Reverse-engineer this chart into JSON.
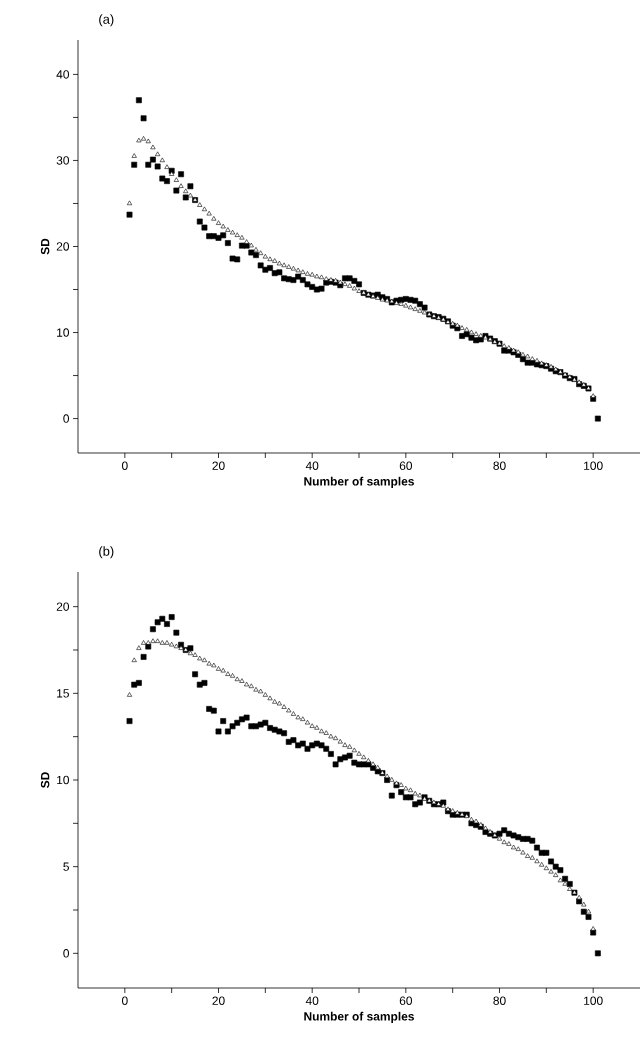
{
  "chart_data": [
    {
      "type": "scatter",
      "title": "(a)",
      "xlabel": "Number of samples",
      "ylabel": "SD",
      "x": [
        1,
        2,
        3,
        4,
        5,
        6,
        7,
        8,
        9,
        10,
        11,
        12,
        13,
        14,
        15,
        16,
        17,
        18,
        19,
        20,
        21,
        22,
        23,
        24,
        25,
        26,
        27,
        28,
        29,
        30,
        31,
        32,
        33,
        34,
        35,
        36,
        37,
        38,
        39,
        40,
        41,
        42,
        43,
        44,
        45,
        46,
        47,
        48,
        49,
        50,
        51,
        52,
        53,
        54,
        55,
        56,
        57,
        58,
        59,
        60,
        61,
        62,
        63,
        64,
        65,
        66,
        67,
        68,
        69,
        70,
        71,
        72,
        73,
        74,
        75,
        76,
        77,
        78,
        79,
        80,
        81,
        82,
        83,
        84,
        85,
        86,
        87,
        88,
        89,
        90,
        91,
        92,
        93,
        94,
        95,
        96,
        97,
        98,
        99,
        100,
        101
      ],
      "series": [
        {
          "color": "#000000",
          "marker": "square",
          "values": [
            23.7,
            29.5,
            37.0,
            34.9,
            29.5,
            30.1,
            29.3,
            27.9,
            27.6,
            28.8,
            26.5,
            28.4,
            25.7,
            27.0,
            25.4,
            22.9,
            22.2,
            21.2,
            21.2,
            21.0,
            21.3,
            20.4,
            18.6,
            18.5,
            20.1,
            20.1,
            19.3,
            19.0,
            17.8,
            17.3,
            17.5,
            16.9,
            17.0,
            16.3,
            16.2,
            16.1,
            16.5,
            16.1,
            15.6,
            15.3,
            15.0,
            15.1,
            15.8,
            15.9,
            15.8,
            15.5,
            16.3,
            16.3,
            16.0,
            15.6,
            14.6,
            14.4,
            14.3,
            14.4,
            14.1,
            13.9,
            13.5,
            13.7,
            13.8,
            13.9,
            13.8,
            13.7,
            13.3,
            12.9,
            12.1,
            11.9,
            11.8,
            11.6,
            11.3,
            10.8,
            10.5,
            9.6,
            9.8,
            9.4,
            9.1,
            9.2,
            9.6,
            9.3,
            9.0,
            8.7,
            7.9,
            7.9,
            7.7,
            7.4,
            6.9,
            6.5,
            6.5,
            6.3,
            6.2,
            6.1,
            5.8,
            5.5,
            5.4,
            5.0,
            4.7,
            4.6,
            4.0,
            3.8,
            3.5,
            2.3,
            0.0
          ]
        },
        {
          "color": "#000000",
          "marker": "triangle",
          "x": [
            1,
            2,
            3,
            4,
            5,
            6,
            7,
            8,
            9,
            10,
            11,
            12,
            13,
            14,
            15,
            16,
            17,
            18,
            19,
            20,
            21,
            22,
            23,
            24,
            25,
            26,
            27,
            28,
            29,
            30,
            31,
            32,
            33,
            34,
            35,
            36,
            37,
            38,
            39,
            40,
            41,
            42,
            43,
            44,
            45,
            46,
            47,
            48,
            49,
            50,
            51,
            52,
            53,
            54,
            55,
            56,
            57,
            58,
            59,
            60,
            61,
            62,
            63,
            64,
            65,
            66,
            67,
            68,
            69,
            70,
            71,
            72,
            73,
            74,
            75,
            76,
            77,
            78,
            79,
            80,
            81,
            82,
            83,
            84,
            85,
            86,
            87,
            88,
            89,
            90,
            91,
            92,
            93,
            94,
            95,
            96,
            97,
            98,
            99,
            100
          ],
          "values": [
            25.0,
            30.5,
            32.3,
            32.5,
            32.2,
            31.5,
            30.7,
            30.0,
            29.2,
            28.4,
            27.7,
            27.0,
            26.4,
            25.9,
            25.4,
            24.8,
            24.3,
            23.8,
            23.2,
            22.7,
            22.3,
            21.9,
            21.6,
            21.3,
            21.0,
            20.5,
            20.1,
            19.6,
            19.2,
            18.8,
            18.5,
            18.3,
            18.0,
            17.8,
            17.6,
            17.4,
            17.2,
            17.0,
            16.8,
            16.7,
            16.5,
            16.4,
            16.2,
            16.1,
            16.0,
            15.8,
            15.6,
            15.4,
            15.1,
            14.8,
            14.6,
            14.4,
            14.2,
            14.0,
            13.8,
            13.7,
            13.6,
            13.4,
            13.3,
            13.1,
            12.9,
            12.7,
            12.5,
            12.3,
            12.1,
            11.9,
            11.7,
            11.5,
            11.2,
            11.0,
            10.8,
            10.5,
            10.3,
            10.0,
            9.8,
            9.6,
            9.4,
            9.2,
            8.9,
            8.7,
            8.4,
            8.2,
            7.9,
            7.7,
            7.4,
            7.2,
            6.9,
            6.7,
            6.4,
            6.2,
            6.0,
            5.7,
            5.4,
            5.1,
            4.8,
            4.5,
            4.2,
            3.9,
            3.5,
            2.6
          ]
        }
      ],
      "xlim": [
        -10,
        110
      ],
      "ylim": [
        -4,
        44
      ],
      "xticks": [
        0,
        {
          "value": 10,
          "label": null
        },
        20,
        {
          "value": 30,
          "label": null
        },
        40,
        {
          "value": 50,
          "label": null
        },
        60,
        {
          "value": 70,
          "label": null
        },
        80,
        {
          "value": 90,
          "label": null
        },
        100
      ],
      "yticks": [
        0,
        {
          "value": 5,
          "label": null
        },
        10,
        {
          "value": 15,
          "label": null
        },
        20,
        {
          "value": 25,
          "label": null
        },
        30,
        {
          "value": 35,
          "label": null
        },
        40
      ]
    },
    {
      "type": "scatter",
      "title": "(b)",
      "xlabel": "Number of samples",
      "ylabel": "SD",
      "x": [
        1,
        2,
        3,
        4,
        5,
        6,
        7,
        8,
        9,
        10,
        11,
        12,
        13,
        14,
        15,
        16,
        17,
        18,
        19,
        20,
        21,
        22,
        23,
        24,
        25,
        26,
        27,
        28,
        29,
        30,
        31,
        32,
        33,
        34,
        35,
        36,
        37,
        38,
        39,
        40,
        41,
        42,
        43,
        44,
        45,
        46,
        47,
        48,
        49,
        50,
        51,
        52,
        53,
        54,
        55,
        56,
        57,
        58,
        59,
        60,
        61,
        62,
        63,
        64,
        65,
        66,
        67,
        68,
        69,
        70,
        71,
        72,
        73,
        74,
        75,
        76,
        77,
        78,
        79,
        80,
        81,
        82,
        83,
        84,
        85,
        86,
        87,
        88,
        89,
        90,
        91,
        92,
        93,
        94,
        95,
        96,
        97,
        98,
        99,
        100,
        101
      ],
      "series": [
        {
          "color": "#000000",
          "marker": "square",
          "values": [
            13.4,
            15.5,
            15.6,
            17.1,
            17.7,
            18.7,
            19.1,
            19.3,
            19.0,
            19.4,
            18.5,
            17.8,
            17.5,
            17.6,
            16.1,
            15.5,
            15.6,
            14.1,
            14.0,
            12.8,
            13.4,
            12.8,
            13.1,
            13.3,
            13.5,
            13.6,
            13.1,
            13.1,
            13.2,
            13.3,
            13.0,
            12.9,
            12.8,
            12.7,
            12.2,
            12.3,
            12.0,
            12.1,
            11.8,
            12.0,
            12.1,
            12.0,
            11.8,
            11.5,
            10.9,
            11.2,
            11.3,
            11.4,
            11.0,
            10.9,
            10.9,
            10.9,
            10.7,
            10.5,
            10.4,
            10.0,
            9.1,
            9.7,
            9.3,
            9.0,
            9.0,
            8.6,
            8.7,
            9.0,
            8.8,
            8.6,
            8.6,
            8.7,
            8.2,
            8.0,
            8.0,
            8.0,
            8.0,
            7.5,
            7.4,
            7.3,
            7.0,
            6.9,
            6.8,
            6.9,
            7.1,
            6.9,
            6.8,
            6.7,
            6.6,
            6.6,
            6.5,
            6.1,
            5.8,
            5.8,
            5.3,
            5.0,
            4.8,
            4.3,
            4.0,
            3.5,
            3.0,
            2.4,
            2.1,
            1.2,
            0.0
          ]
        },
        {
          "color": "#000000",
          "marker": "triangle",
          "x": [
            1,
            2,
            3,
            4,
            5,
            6,
            7,
            8,
            9,
            10,
            11,
            12,
            13,
            14,
            15,
            16,
            17,
            18,
            19,
            20,
            21,
            22,
            23,
            24,
            25,
            26,
            27,
            28,
            29,
            30,
            31,
            32,
            33,
            34,
            35,
            36,
            37,
            38,
            39,
            40,
            41,
            42,
            43,
            44,
            45,
            46,
            47,
            48,
            49,
            50,
            51,
            52,
            53,
            54,
            55,
            56,
            57,
            58,
            59,
            60,
            61,
            62,
            63,
            64,
            65,
            66,
            67,
            68,
            69,
            70,
            71,
            72,
            73,
            74,
            75,
            76,
            77,
            78,
            79,
            80,
            81,
            82,
            83,
            84,
            85,
            86,
            87,
            88,
            89,
            90,
            91,
            92,
            93,
            94,
            95,
            96,
            97,
            98,
            99,
            100
          ],
          "values": [
            14.9,
            16.9,
            17.6,
            17.9,
            17.9,
            18.0,
            18.0,
            17.9,
            17.9,
            17.8,
            17.7,
            17.6,
            17.5,
            17.3,
            17.2,
            17.0,
            16.9,
            16.7,
            16.6,
            16.4,
            16.3,
            16.1,
            16.0,
            15.8,
            15.7,
            15.5,
            15.4,
            15.2,
            15.1,
            14.9,
            14.7,
            14.5,
            14.4,
            14.2,
            14.0,
            13.8,
            13.6,
            13.5,
            13.3,
            13.1,
            13.0,
            12.8,
            12.7,
            12.5,
            12.4,
            12.2,
            12.0,
            11.9,
            11.7,
            11.5,
            11.3,
            11.1,
            10.9,
            10.7,
            10.4,
            10.2,
            10.0,
            9.8,
            9.7,
            9.5,
            9.4,
            9.2,
            9.1,
            8.9,
            8.8,
            8.7,
            8.6,
            8.5,
            8.3,
            8.2,
            8.1,
            8.0,
            7.9,
            7.7,
            7.6,
            7.4,
            7.2,
            7.0,
            6.8,
            6.6,
            6.4,
            6.3,
            6.1,
            6.0,
            5.8,
            5.6,
            5.5,
            5.3,
            5.1,
            4.9,
            4.7,
            4.5,
            4.2,
            4.0,
            3.7,
            3.5,
            3.2,
            2.8,
            2.4,
            1.4
          ]
        }
      ],
      "xlim": [
        -10,
        110
      ],
      "ylim": [
        -2,
        22
      ],
      "xticks": [
        0,
        {
          "value": 10,
          "label": null
        },
        20,
        {
          "value": 30,
          "label": null
        },
        40,
        {
          "value": 50,
          "label": null
        },
        60,
        {
          "value": 70,
          "label": null
        },
        80,
        {
          "value": 90,
          "label": null
        },
        100
      ],
      "yticks": [
        0,
        {
          "value": 2.5,
          "label": null
        },
        5,
        {
          "value": 7.5,
          "label": null
        },
        10,
        {
          "value": 12.5,
          "label": null
        },
        15,
        {
          "value": 17.5,
          "label": null
        },
        20
      ]
    }
  ]
}
